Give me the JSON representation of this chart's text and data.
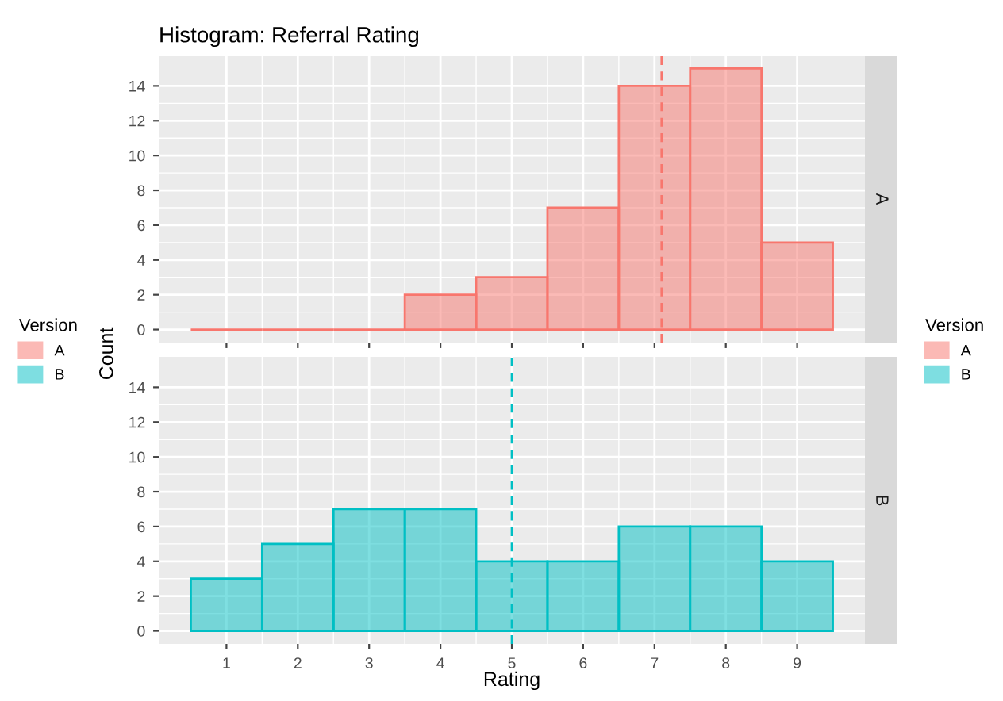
{
  "chart_data": [
    {
      "type": "histogram",
      "title": "Histogram: Referral Rating",
      "ylabel": "Count",
      "legend_title": "Version",
      "legend": "left",
      "bins": [
        0.5,
        1.5,
        2.5,
        3.5,
        4.5,
        5.5,
        6.5,
        7.5,
        8.5,
        9.5
      ],
      "series": [
        {
          "name": "A",
          "color": "#f8766d",
          "values": [
            0,
            0,
            0,
            2,
            3,
            7,
            14,
            15,
            5
          ]
        }
      ],
      "ref_lines": [
        {
          "axis": "x",
          "value": 7.1,
          "color": "#f8766d",
          "line_style": "dashed"
        }
      ],
      "xlim": [
        0.05,
        9.95
      ],
      "xticks": [
        1,
        2,
        3,
        4,
        5,
        6,
        7,
        8,
        9
      ],
      "ylim": [
        -0.75,
        15.75
      ],
      "yticks": [
        0,
        2,
        4,
        6,
        8,
        10,
        12,
        14
      ],
      "tick_labels": "y",
      "grid": true
    },
    {
      "type": "histogram",
      "xlabel": "Rating",
      "bins": [
        0.5,
        1.5,
        2.5,
        3.5,
        4.5,
        5.5,
        6.5,
        7.5,
        8.5,
        9.5
      ],
      "legend": "left",
      "series": [
        {
          "name": "B",
          "color": "#00bfc4",
          "values": [
            3,
            5,
            7,
            7,
            4,
            4,
            6,
            6,
            4
          ]
        }
      ],
      "ref_lines": [
        {
          "axis": "x",
          "value": 5,
          "color": "#00bfc4",
          "line_style": "dashed"
        }
      ],
      "xlim": [
        0.05,
        9.95
      ],
      "xticks": [
        1,
        2,
        3,
        4,
        5,
        6,
        7,
        8,
        9
      ],
      "ylim": [
        -0.75,
        15.75
      ],
      "yticks": [
        0,
        2,
        4,
        6,
        8,
        10,
        12,
        14
      ],
      "grid": true
    }
  ]
}
